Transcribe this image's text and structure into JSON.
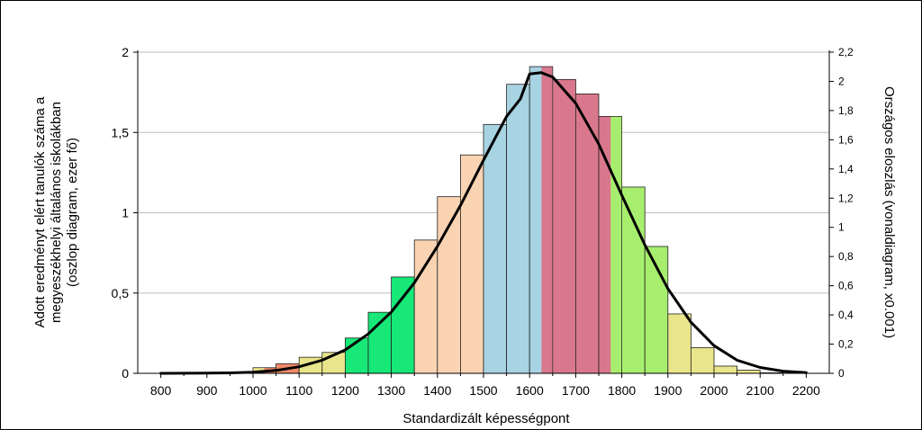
{
  "chart_data": {
    "type": "bar",
    "xlabel": "Standardizált képességpont",
    "ylabel_left_lines": [
      "Adott eredményt elért tanulók száma a",
      "megyeszékhelyi általános iskolákban",
      "(oszlop diagram, ezer fő)"
    ],
    "ylabel_right": "Országos eloszlás (vonaldiagram, x0.001)",
    "xlim": [
      750,
      2250
    ],
    "ylim_left": [
      0,
      2
    ],
    "ylim_right": [
      0,
      2.2
    ],
    "x_ticks": [
      "800",
      "900",
      "1000",
      "1100",
      "1200",
      "1300",
      "1400",
      "1500",
      "1600",
      "1700",
      "1800",
      "1900",
      "2000",
      "2100",
      "2200"
    ],
    "y_ticks_left": [
      "0",
      "0,5",
      "1",
      "1,5",
      "2"
    ],
    "y_ticks_right": [
      "0",
      "0,2",
      "0,4",
      "0,6",
      "0,8",
      "1",
      "1,2",
      "1,4",
      "1,6",
      "1,8",
      "2",
      "2,2"
    ],
    "grid": "horizontal",
    "bin_width": 50,
    "bars": [
      {
        "x0": 800,
        "value": 0.0,
        "color": "#e9e58a"
      },
      {
        "x0": 850,
        "value": 0.0,
        "color": "#e9e58a"
      },
      {
        "x0": 900,
        "value": 0.0,
        "color": "#e9e58a"
      },
      {
        "x0": 950,
        "value": 0.0,
        "color": "#e9e58a"
      },
      {
        "x0": 1000,
        "value": 0.035,
        "color": "#f08a6a"
      },
      {
        "x0": 1050,
        "value": 0.06,
        "color": "#f08a6a"
      },
      {
        "x0": 1100,
        "value": 0.1,
        "color": "#e9e58a"
      },
      {
        "x0": 1150,
        "value": 0.13,
        "color": "#e9e58a"
      },
      {
        "x0": 1200,
        "value": 0.22,
        "color": "#17e878"
      },
      {
        "x0": 1250,
        "value": 0.38,
        "color": "#17e878"
      },
      {
        "x0": 1300,
        "value": 0.6,
        "color": "#17e878"
      },
      {
        "x0": 1350,
        "value": 0.83,
        "color": "#fad3b2"
      },
      {
        "x0": 1400,
        "value": 1.1,
        "color": "#fad3b2"
      },
      {
        "x0": 1450,
        "value": 1.36,
        "color": "#fad3b2"
      },
      {
        "x0": 1500,
        "value": 1.55,
        "color": "#a8d3e2"
      },
      {
        "x0": 1550,
        "value": 1.8,
        "color": "#a8d3e2"
      },
      {
        "x0": 1600,
        "value": 1.91,
        "color": "#a8d3e2"
      },
      {
        "x0": 1650,
        "value": 1.83,
        "color": "#d9788c"
      },
      {
        "x0": 1700,
        "value": 1.74,
        "color": "#d9788c"
      },
      {
        "x0": 1750,
        "value": 1.6,
        "color": "#d9788c"
      },
      {
        "x0": 1800,
        "value": 1.16,
        "color": "#a8ee6e"
      },
      {
        "x0": 1850,
        "value": 0.79,
        "color": "#a8ee6e"
      },
      {
        "x0": 1900,
        "value": 0.37,
        "color": "#e9e58a"
      },
      {
        "x0": 1950,
        "value": 0.16,
        "color": "#e9e58a"
      },
      {
        "x0": 2000,
        "value": 0.045,
        "color": "#e9e58a"
      },
      {
        "x0": 2050,
        "value": 0.02,
        "color": "#e9e58a"
      },
      {
        "x0": 2100,
        "value": 0.0,
        "color": "#e9e58a"
      }
    ],
    "color_overlays": [
      {
        "x_start": 1000,
        "x_end": 1025,
        "color": "#e9e58a"
      },
      {
        "x_start": 1625,
        "x_end": 1650,
        "color": "#d9788c"
      },
      {
        "x_start": 1775,
        "x_end": 1800,
        "color": "#a8ee6e"
      },
      {
        "x_start": 1925,
        "x_end": 1950,
        "color": "#e9e58a"
      }
    ],
    "curve": {
      "name": "Országos eloszlás",
      "axis": "right",
      "color": "#000000",
      "points": [
        [
          800,
          0.0
        ],
        [
          850,
          0.0005
        ],
        [
          900,
          0.001
        ],
        [
          950,
          0.003
        ],
        [
          1000,
          0.008
        ],
        [
          1050,
          0.02
        ],
        [
          1100,
          0.045
        ],
        [
          1150,
          0.09
        ],
        [
          1200,
          0.16
        ],
        [
          1250,
          0.27
        ],
        [
          1300,
          0.42
        ],
        [
          1350,
          0.62
        ],
        [
          1400,
          0.87
        ],
        [
          1450,
          1.15
        ],
        [
          1500,
          1.46
        ],
        [
          1550,
          1.76
        ],
        [
          1580,
          1.88
        ],
        [
          1600,
          2.05
        ],
        [
          1625,
          2.06
        ],
        [
          1650,
          2.03
        ],
        [
          1700,
          1.85
        ],
        [
          1750,
          1.57
        ],
        [
          1800,
          1.22
        ],
        [
          1850,
          0.88
        ],
        [
          1900,
          0.58
        ],
        [
          1950,
          0.35
        ],
        [
          2000,
          0.19
        ],
        [
          2050,
          0.09
        ],
        [
          2100,
          0.04
        ],
        [
          2150,
          0.015
        ],
        [
          2200,
          0.005
        ]
      ]
    }
  }
}
